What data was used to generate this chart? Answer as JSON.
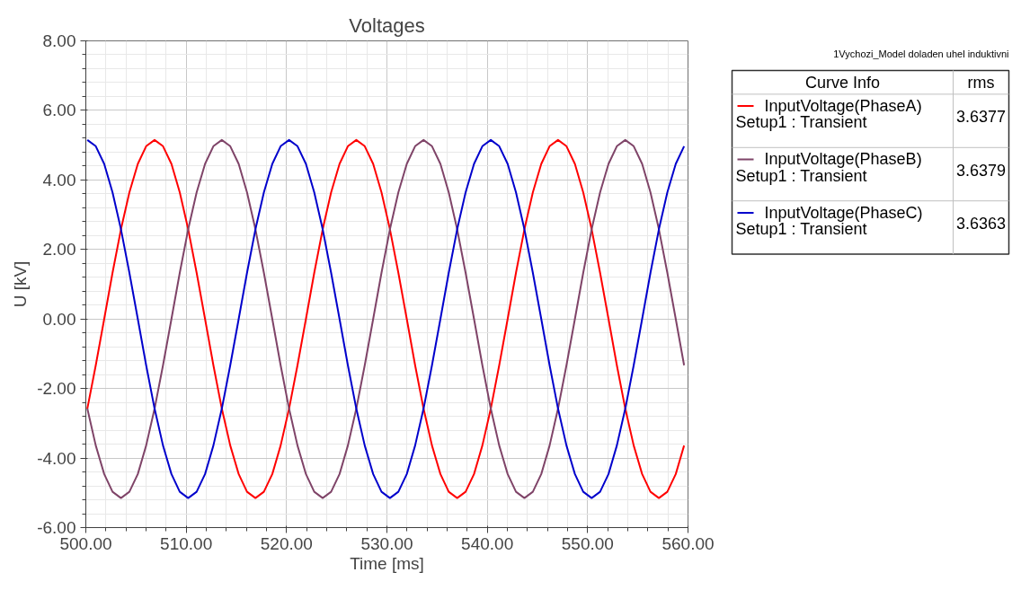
{
  "chart_data": {
    "type": "line",
    "title": "Voltages",
    "xlabel": "Time [ms]",
    "ylabel": "U [kV]",
    "annotations": [
      "1Vychozi_Model doladen uhel induktivni",
      "Curve Info",
      "rms",
      "Setup1 : Transient",
      "3.6377",
      "Setup1 : Transient",
      "3.6379",
      "Setup1 : Transient",
      "3.6363"
    ],
    "xlim": [
      500,
      560
    ],
    "ylim": [
      -6,
      8
    ],
    "xticks": [
      {
        "value": 500,
        "label": "500.00"
      },
      {
        "value": 510,
        "label": "510.00"
      },
      {
        "value": 520,
        "label": "520.00"
      },
      {
        "value": 530,
        "label": "530.00"
      },
      {
        "value": 540,
        "label": "540.00"
      },
      {
        "value": 550,
        "label": "550.00"
      },
      {
        "value": 560,
        "label": "560.00"
      }
    ],
    "yticks": [
      {
        "value": -6,
        "label": "-6.00"
      },
      {
        "value": -4,
        "label": "-4.00"
      },
      {
        "value": -2,
        "label": "-2.00"
      },
      {
        "value": 0,
        "label": "0.00"
      },
      {
        "value": 2,
        "label": "2.00"
      },
      {
        "value": 4,
        "label": "4.00"
      },
      {
        "value": 6,
        "label": "6.00"
      },
      {
        "value": 8,
        "label": "8.00"
      }
    ],
    "grid": true,
    "legend": "right",
    "line_style": "solid",
    "x": [
      500.15,
      500.99,
      501.83,
      502.66,
      503.5,
      504.34,
      505.18,
      506.01,
      506.85,
      507.69,
      508.53,
      509.36,
      510.2,
      511.04,
      511.88,
      512.71,
      513.55,
      514.39,
      515.23,
      516.06,
      516.9,
      517.74,
      518.58,
      519.41,
      520.25,
      521.09,
      521.93,
      522.76,
      523.6,
      524.44,
      525.28,
      526.11,
      526.95,
      527.79,
      528.63,
      529.46,
      530.3,
      531.14,
      531.98,
      532.81,
      533.65,
      534.49,
      535.33,
      536.16,
      537.0,
      537.84,
      538.68,
      539.51,
      540.35,
      541.19,
      542.03,
      542.86,
      543.7,
      544.54,
      545.38,
      546.21,
      547.05,
      547.89,
      548.73,
      549.56,
      550.4,
      551.24,
      552.08,
      552.91,
      553.75,
      554.59,
      555.43,
      556.26,
      557.1,
      557.94,
      558.78,
      559.61
    ],
    "series": [
      {
        "name": "InputVoltage(PhaseA)",
        "color": "#ff0000",
        "values": [
          -2.58,
          -1.33,
          0,
          1.33,
          2.58,
          3.64,
          4.46,
          4.97,
          5.15,
          4.97,
          4.46,
          3.64,
          2.58,
          1.33,
          0,
          -1.33,
          -2.58,
          -3.64,
          -4.46,
          -4.97,
          -5.15,
          -4.97,
          -4.46,
          -3.64,
          -2.58,
          -1.33,
          0,
          1.33,
          2.58,
          3.64,
          4.46,
          4.97,
          5.15,
          4.97,
          4.46,
          3.64,
          2.58,
          1.33,
          0,
          -1.33,
          -2.58,
          -3.64,
          -4.46,
          -4.97,
          -5.15,
          -4.97,
          -4.46,
          -3.64,
          -2.58,
          -1.33,
          0,
          1.33,
          2.58,
          3.64,
          4.46,
          4.97,
          5.15,
          4.97,
          4.46,
          3.64,
          2.58,
          1.33,
          0,
          -1.33,
          -2.58,
          -3.64,
          -4.46,
          -4.97,
          -5.15,
          -4.97,
          -4.46,
          -3.64
        ]
      },
      {
        "name": "InputVoltage(PhaseB)",
        "color": "#7f4468",
        "values": [
          -2.58,
          -3.64,
          -4.46,
          -4.97,
          -5.15,
          -4.97,
          -4.46,
          -3.64,
          -2.58,
          -1.33,
          0,
          1.33,
          2.58,
          3.64,
          4.46,
          4.97,
          5.15,
          4.97,
          4.46,
          3.64,
          2.58,
          1.33,
          0,
          -1.33,
          -2.58,
          -3.64,
          -4.46,
          -4.97,
          -5.15,
          -4.97,
          -4.46,
          -3.64,
          -2.58,
          -1.33,
          0,
          1.33,
          2.58,
          3.64,
          4.46,
          4.97,
          5.15,
          4.97,
          4.46,
          3.64,
          2.58,
          1.33,
          0,
          -1.33,
          -2.58,
          -3.64,
          -4.46,
          -4.97,
          -5.15,
          -4.97,
          -4.46,
          -3.64,
          -2.58,
          -1.33,
          0,
          1.33,
          2.58,
          3.64,
          4.46,
          4.97,
          5.15,
          4.97,
          4.46,
          3.64,
          2.58,
          1.33,
          0,
          -1.33
        ]
      },
      {
        "name": "InputVoltage(PhaseC)",
        "color": "#0000cc",
        "values": [
          5.15,
          4.97,
          4.46,
          3.64,
          2.58,
          1.33,
          0,
          -1.33,
          -2.58,
          -3.64,
          -4.46,
          -4.97,
          -5.15,
          -4.97,
          -4.46,
          -3.64,
          -2.58,
          -1.33,
          0,
          1.33,
          2.58,
          3.64,
          4.46,
          4.97,
          5.15,
          4.97,
          4.46,
          3.64,
          2.58,
          1.33,
          0,
          -1.33,
          -2.58,
          -3.64,
          -4.46,
          -4.97,
          -5.15,
          -4.97,
          -4.46,
          -3.64,
          -2.58,
          -1.33,
          0,
          1.33,
          2.58,
          3.64,
          4.46,
          4.97,
          5.15,
          4.97,
          4.46,
          3.64,
          2.58,
          1.33,
          0,
          -1.33,
          -2.58,
          -3.64,
          -4.46,
          -4.97,
          -5.15,
          -4.97,
          -4.46,
          -3.64,
          -2.58,
          -1.33,
          0,
          1.33,
          2.58,
          3.64,
          4.46,
          4.97
        ]
      }
    ]
  }
}
